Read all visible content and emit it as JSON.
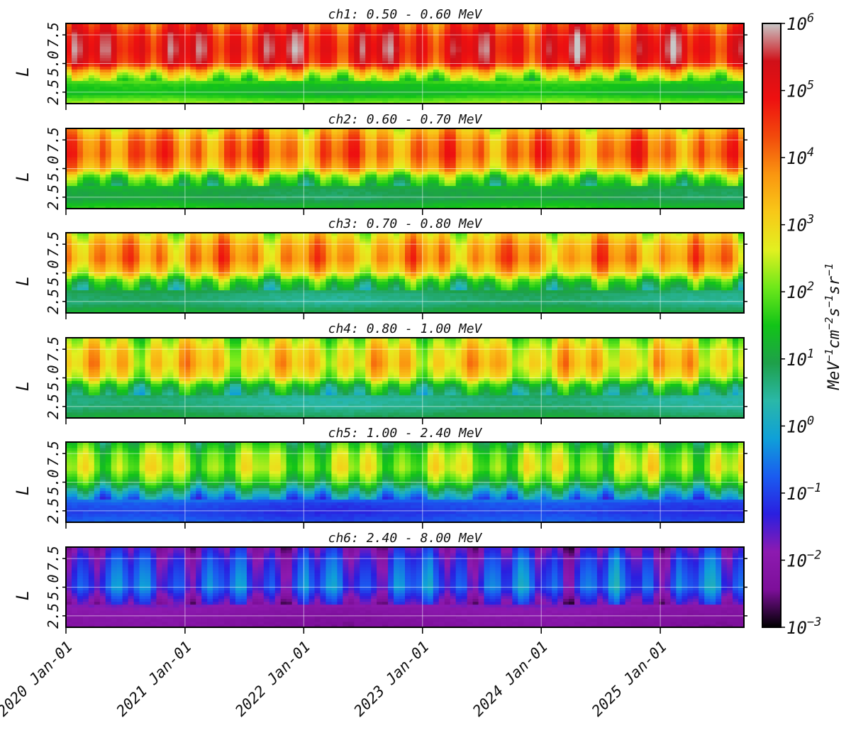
{
  "chart_data": {
    "type": "heatmap",
    "panels": [
      {
        "id": "ch1",
        "title": "ch1: 0.50 - 0.60 MeV",
        "ylabel": "L",
        "profile_log10": [
          [
            1.6,
            2.2
          ],
          [
            2.4,
            1.3
          ],
          [
            3.2,
            1.5
          ],
          [
            4.3,
            3.0
          ],
          [
            5.0,
            4.8
          ],
          [
            6.2,
            5.1
          ],
          [
            7.5,
            4.9
          ],
          [
            8.5,
            4.3
          ]
        ]
      },
      {
        "id": "ch2",
        "title": "ch2: 0.60 - 0.70 MeV",
        "ylabel": "L",
        "profile_log10": [
          [
            1.6,
            1.5
          ],
          [
            2.4,
            0.9
          ],
          [
            3.2,
            1.0
          ],
          [
            4.3,
            2.0
          ],
          [
            5.0,
            3.5
          ],
          [
            6.2,
            4.1
          ],
          [
            7.5,
            3.9
          ],
          [
            8.5,
            3.2
          ]
        ]
      },
      {
        "id": "ch3",
        "title": "ch3: 0.70 - 0.80 MeV",
        "ylabel": "L",
        "profile_log10": [
          [
            1.6,
            1.1
          ],
          [
            2.4,
            0.6
          ],
          [
            3.2,
            0.7
          ],
          [
            4.3,
            1.6
          ],
          [
            5.0,
            3.0
          ],
          [
            6.2,
            3.8
          ],
          [
            7.5,
            3.5
          ],
          [
            8.5,
            2.8
          ]
        ]
      },
      {
        "id": "ch4",
        "title": "ch4: 0.80 - 1.00 MeV",
        "ylabel": "L",
        "profile_log10": [
          [
            1.6,
            1.0
          ],
          [
            2.4,
            0.6
          ],
          [
            3.2,
            0.5
          ],
          [
            4.3,
            1.3
          ],
          [
            5.0,
            2.6
          ],
          [
            6.2,
            3.2
          ],
          [
            7.5,
            2.9
          ],
          [
            8.5,
            2.3
          ]
        ]
      },
      {
        "id": "ch5",
        "title": "ch5: 1.00 - 2.40 MeV",
        "ylabel": "L",
        "profile_log10": [
          [
            1.6,
            -0.8
          ],
          [
            2.4,
            -1.1
          ],
          [
            3.2,
            -0.9
          ],
          [
            4.3,
            0.4
          ],
          [
            5.0,
            1.5
          ],
          [
            6.2,
            2.4
          ],
          [
            7.5,
            2.1
          ],
          [
            8.5,
            1.4
          ]
        ]
      },
      {
        "id": "ch6",
        "title": "ch6: 2.40 - 8.00 MeV",
        "ylabel": "L",
        "profile_log10": [
          [
            1.6,
            -2.3
          ],
          [
            2.4,
            -2.2
          ],
          [
            3.2,
            -2.0
          ],
          [
            4.3,
            -1.3
          ],
          [
            5.0,
            -0.8
          ],
          [
            6.2,
            -1.0
          ],
          [
            7.5,
            -1.3
          ],
          [
            8.5,
            -1.8
          ]
        ]
      }
    ],
    "x_axis": {
      "range": [
        "2020-01-01",
        "2025-09-15"
      ],
      "ticks": [
        "2020-01-01",
        "2021-01-01",
        "2022-01-01",
        "2023-01-01",
        "2024-01-01",
        "2025-01-01"
      ],
      "tick_labels": [
        "2020 Jan-01",
        "2021 Jan-01",
        "2022 Jan-01",
        "2023 Jan-01",
        "2024 Jan-01",
        "2025 Jan-01"
      ]
    },
    "y_axis": {
      "range": [
        1.5,
        8.5
      ],
      "ticks": [
        2.5,
        5.0,
        7.5
      ],
      "tick_labels": [
        "2.5",
        "5.0",
        "7.5"
      ]
    },
    "colorbar": {
      "scale": "log",
      "range": [
        0.001,
        1000000
      ],
      "ticks": [
        {
          "base": "10",
          "exp": "6"
        },
        {
          "base": "10",
          "exp": "5"
        },
        {
          "base": "10",
          "exp": "4"
        },
        {
          "base": "10",
          "exp": "3"
        },
        {
          "base": "10",
          "exp": "2"
        },
        {
          "base": "10",
          "exp": "1"
        },
        {
          "base": "10",
          "exp": "0"
        },
        {
          "base": "10",
          "exp": "−1"
        },
        {
          "base": "10",
          "exp": "−2"
        },
        {
          "base": "10",
          "exp": "−3"
        }
      ],
      "label_parts": [
        {
          "t": "MeV",
          "sup": false
        },
        {
          "t": "−1",
          "sup": true
        },
        {
          "t": "cm",
          "sup": false
        },
        {
          "t": "−2",
          "sup": true
        },
        {
          "t": "s",
          "sup": false
        },
        {
          "t": "−1",
          "sup": true
        },
        {
          "t": "sr",
          "sup": false
        },
        {
          "t": "−1",
          "sup": true
        }
      ],
      "colors": [
        "#000000",
        "#7d0f9a",
        "#8d1ab0",
        "#2a1fe0",
        "#1a5cf0",
        "#0fa0d8",
        "#2ab8a8",
        "#1ea04a",
        "#12c418",
        "#6ee81a",
        "#e2f020",
        "#f8c818",
        "#fa9610",
        "#f24a0c",
        "#ee1010",
        "#d01018",
        "#c8c8c8"
      ]
    },
    "grid": true,
    "legend": "none"
  }
}
